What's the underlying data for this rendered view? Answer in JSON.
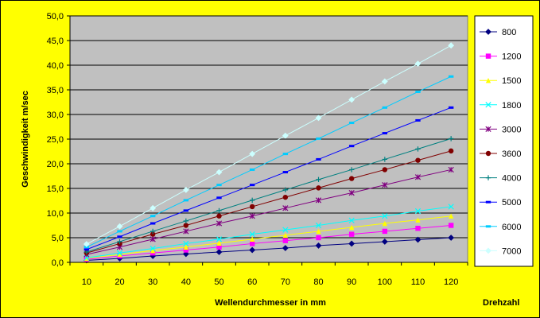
{
  "chart_data": {
    "type": "line",
    "title": "",
    "xlabel": "Wellendurchmesser in mm",
    "ylabel": "Geschwindigkeit m/sec",
    "legend_title": "Drehzahl",
    "legend_position": "right",
    "grid": true,
    "plot_background": "#c0c0c0",
    "page_background": "#ffff00",
    "ylim": [
      0,
      50
    ],
    "yticks": [
      "0,0",
      "5,0",
      "10,0",
      "15,0",
      "20,0",
      "25,0",
      "30,0",
      "35,0",
      "40,0",
      "45,0",
      "50,0"
    ],
    "x": [
      10,
      20,
      30,
      40,
      50,
      60,
      70,
      80,
      90,
      100,
      110,
      120
    ],
    "series": [
      {
        "name": "800",
        "color": "#000080",
        "marker": "diamond",
        "values": [
          0.4,
          0.8,
          1.3,
          1.7,
          2.1,
          2.5,
          2.9,
          3.4,
          3.8,
          4.2,
          4.6,
          5.0
        ]
      },
      {
        "name": "1200",
        "color": "#ff00ff",
        "marker": "square",
        "values": [
          0.6,
          1.3,
          1.9,
          2.5,
          3.1,
          3.8,
          4.4,
          5.0,
          5.7,
          6.3,
          6.9,
          7.5
        ]
      },
      {
        "name": "1500",
        "color": "#ffff00",
        "marker": "triangle",
        "values": [
          0.8,
          1.6,
          2.4,
          3.1,
          3.9,
          4.7,
          5.5,
          6.3,
          7.1,
          7.9,
          8.6,
          9.4
        ]
      },
      {
        "name": "1800",
        "color": "#00ffff",
        "marker": "x",
        "values": [
          0.9,
          1.9,
          2.8,
          3.8,
          4.7,
          5.7,
          6.6,
          7.5,
          8.5,
          9.4,
          10.4,
          11.3
        ]
      },
      {
        "name": "3000",
        "color": "#800080",
        "marker": "star",
        "values": [
          1.6,
          3.1,
          4.7,
          6.3,
          7.9,
          9.4,
          11.0,
          12.6,
          14.1,
          15.7,
          17.3,
          18.8
        ]
      },
      {
        "name": "3600",
        "color": "#800000",
        "marker": "circle",
        "values": [
          1.9,
          3.8,
          5.7,
          7.5,
          9.4,
          11.3,
          13.2,
          15.1,
          17.0,
          18.8,
          20.7,
          22.6
        ]
      },
      {
        "name": "4000",
        "color": "#008080",
        "marker": "plus",
        "values": [
          2.1,
          4.2,
          6.3,
          8.4,
          10.5,
          12.6,
          14.7,
          16.8,
          18.8,
          20.9,
          23.0,
          25.1
        ]
      },
      {
        "name": "5000",
        "color": "#0000ff",
        "marker": "dash",
        "values": [
          2.6,
          5.2,
          7.9,
          10.5,
          13.1,
          15.7,
          18.3,
          20.9,
          23.6,
          26.2,
          28.8,
          31.4
        ]
      },
      {
        "name": "6000",
        "color": "#00ccff",
        "marker": "dash",
        "values": [
          3.1,
          6.3,
          9.4,
          12.6,
          15.7,
          18.8,
          22.0,
          25.1,
          28.3,
          31.4,
          34.6,
          37.7
        ]
      },
      {
        "name": "7000",
        "color": "#ccffff",
        "marker": "diamond",
        "values": [
          3.7,
          7.3,
          11.0,
          14.7,
          18.3,
          22.0,
          25.7,
          29.3,
          33.0,
          36.7,
          40.3,
          44.0
        ]
      }
    ]
  }
}
